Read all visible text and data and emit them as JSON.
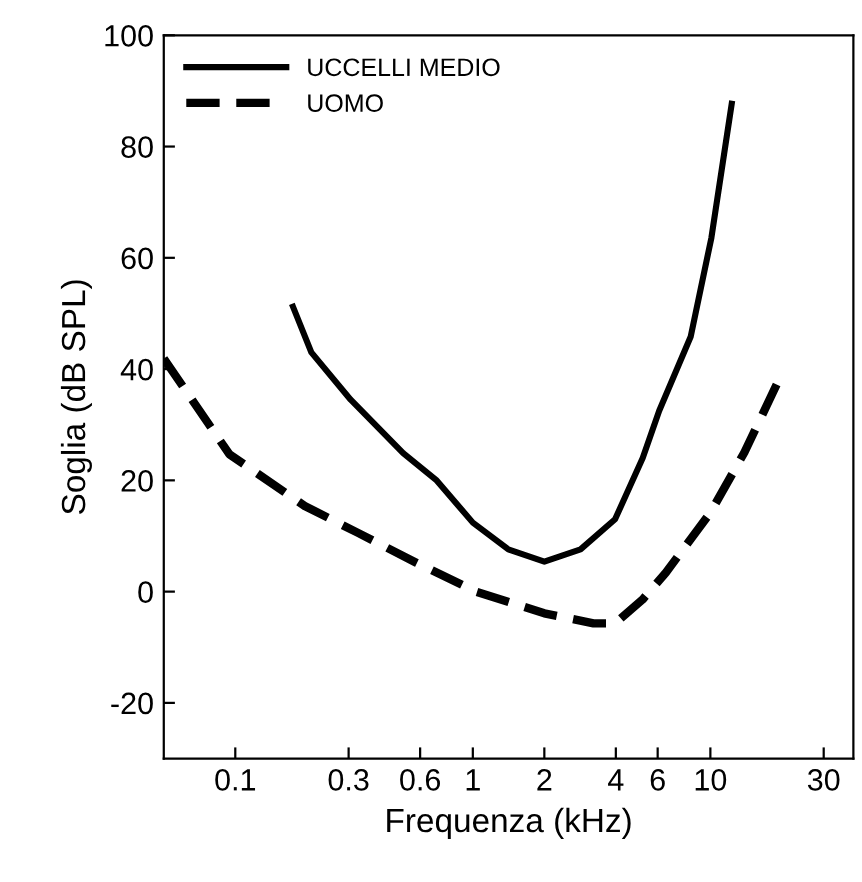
{
  "chart_data": {
    "type": "line",
    "xlabel": "Frequenza (kHz)",
    "ylabel": "Soglia (dB SPL)",
    "log": "x",
    "xlim": [
      0.05,
      40
    ],
    "ylim": [
      -30,
      100
    ],
    "xticks": [
      0.1,
      0.3,
      0.6,
      1,
      2,
      4,
      6,
      10,
      30
    ],
    "yticks": [
      -20,
      0,
      20,
      40,
      60,
      80,
      100
    ],
    "grid": false,
    "legend": "top left",
    "marker": "none",
    "series": [
      {
        "name": "UCCELLI MEDIO",
        "color": "#000000",
        "line_style": "solid",
        "x": [
          0.175,
          0.209,
          0.306,
          0.509,
          0.7,
          1,
          1.41,
          2.0,
          2.84,
          3.97,
          5.19,
          6.09,
          8.26,
          10.1,
          12.3
        ],
        "values": [
          51.2,
          43.0,
          34.5,
          24.9,
          20.1,
          12.4,
          7.6,
          5.4,
          7.6,
          13.0,
          24.0,
          32.5,
          45.8,
          63.6,
          87.7
        ]
      },
      {
        "name": "UOMO",
        "color": "#000000",
        "line_style": "dashed",
        "x": [
          0.05,
          0.0944,
          0.196,
          0.327,
          0.578,
          1.03,
          2.0,
          3.22,
          3.97,
          5.19,
          6.49,
          10,
          13.9,
          19.8
        ],
        "values": [
          41.9,
          24.7,
          15.4,
          10.6,
          5.2,
          0,
          -3.9,
          -5.7,
          -5.7,
          -1.4,
          3.4,
          14.2,
          25.0,
          38.8
        ]
      }
    ]
  }
}
